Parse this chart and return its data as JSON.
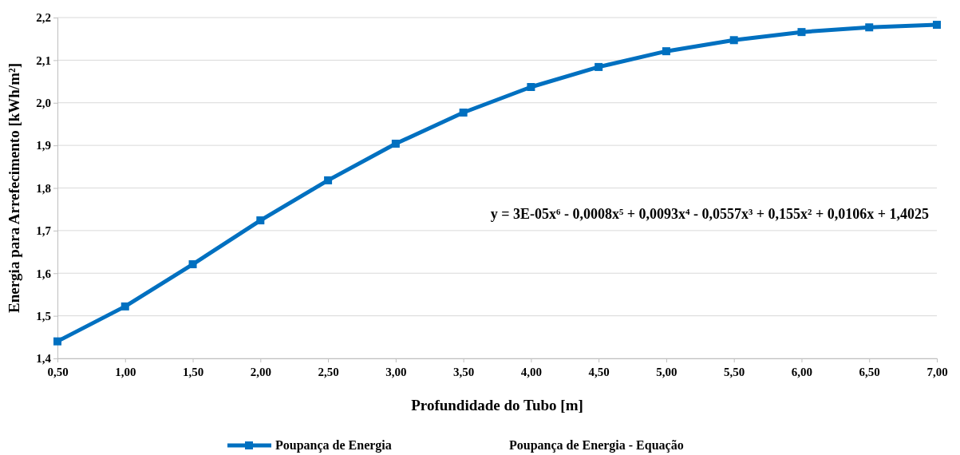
{
  "chart_data": {
    "type": "line",
    "xlabel": "Profundidade do Tubo [m]",
    "ylabel": "Energia para Arrefecimento [kWh/m²]",
    "x": [
      0.5,
      1.0,
      1.5,
      2.0,
      2.5,
      3.0,
      3.5,
      4.0,
      4.5,
      5.0,
      5.5,
      6.0,
      6.5,
      7.0
    ],
    "series": [
      {
        "name": "Poupança de Energia",
        "color": "#0070c0",
        "marker": "square",
        "values": [
          1.44,
          1.522,
          1.621,
          1.724,
          1.818,
          1.904,
          1.977,
          2.037,
          2.084,
          2.121,
          2.147,
          2.166,
          2.177,
          2.183
        ]
      }
    ],
    "xlim": [
      0.5,
      7.0
    ],
    "xticks": [
      {
        "value": 0.5,
        "label": "0,50"
      },
      {
        "value": 1.0,
        "label": "1,00"
      },
      {
        "value": 1.5,
        "label": "1,50"
      },
      {
        "value": 2.0,
        "label": "2,00"
      },
      {
        "value": 2.5,
        "label": "2,50"
      },
      {
        "value": 3.0,
        "label": "3,00"
      },
      {
        "value": 3.5,
        "label": "3,50"
      },
      {
        "value": 4.0,
        "label": "4,00"
      },
      {
        "value": 4.5,
        "label": "4,50"
      },
      {
        "value": 5.0,
        "label": "5,00"
      },
      {
        "value": 5.5,
        "label": "5,50"
      },
      {
        "value": 6.0,
        "label": "6,00"
      },
      {
        "value": 6.5,
        "label": "6,50"
      },
      {
        "value": 7.0,
        "label": "7,00"
      }
    ],
    "ylim": [
      1.4,
      2.2
    ],
    "yticks": [
      {
        "value": 1.4,
        "label": "1,4"
      },
      {
        "value": 1.5,
        "label": "1,5"
      },
      {
        "value": 1.6,
        "label": "1,6"
      },
      {
        "value": 1.7,
        "label": "1,7"
      },
      {
        "value": 1.8,
        "label": "1,8"
      },
      {
        "value": 1.9,
        "label": "1,9"
      },
      {
        "value": 2.0,
        "label": "2,0"
      },
      {
        "value": 2.1,
        "label": "2,1"
      },
      {
        "value": 2.2,
        "label": "2,2"
      }
    ],
    "annotations": [
      "y = 3E-05x⁶ - 0,0008x⁵ + 0,0093x⁴ - 0,0557x³ + 0,155x² + 0,0106x + 1,4025",
      "Poupança de Energia - Equação"
    ],
    "grid": "y",
    "legend": "bottom",
    "line_style": "solid"
  }
}
